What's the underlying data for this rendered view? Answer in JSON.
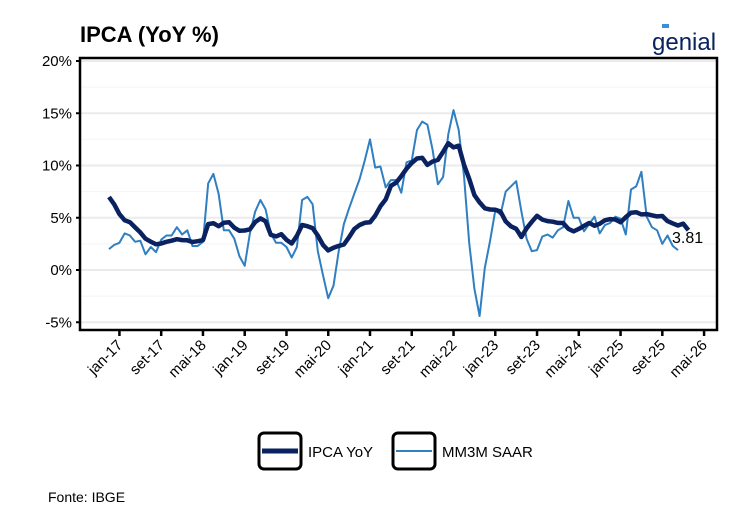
{
  "title": "IPCA (YoY %)",
  "logo_text": "genial",
  "source": "Fonte: IBGE",
  "colors": {
    "ipca": "#0a2260",
    "saar": "#2f7fc1",
    "grid": "#ebebeb"
  },
  "chart_data": {
    "type": "line",
    "ylim": [
      -5,
      20
    ],
    "yticks": [
      -5,
      0,
      5,
      10,
      15,
      20
    ],
    "ytick_labels": [
      "-5%",
      "0%",
      "5%",
      "10%",
      "15%",
      "20%"
    ],
    "xtick_dates": [
      "2017-01",
      "2017-09",
      "2018-05",
      "2019-01",
      "2019-09",
      "2020-05",
      "2021-01",
      "2021-09",
      "2022-05",
      "2023-01",
      "2023-09",
      "2024-05",
      "2025-01",
      "2025-09",
      "2026-05"
    ],
    "xtick_labels": [
      "jan-17",
      "set-17",
      "mai-18",
      "jan-19",
      "set-19",
      "mai-20",
      "jan-21",
      "set-21",
      "mai-22",
      "jan-23",
      "set-23",
      "mai-24",
      "jan-25",
      "set-25",
      "mai-26"
    ],
    "grid": true,
    "legend_position": "bottom",
    "x": [
      "2016-11",
      "2016-12",
      "2017-01",
      "2017-02",
      "2017-03",
      "2017-04",
      "2017-05",
      "2017-06",
      "2017-07",
      "2017-08",
      "2017-09",
      "2017-10",
      "2017-11",
      "2017-12",
      "2018-01",
      "2018-02",
      "2018-03",
      "2018-04",
      "2018-05",
      "2018-06",
      "2018-07",
      "2018-08",
      "2018-09",
      "2018-10",
      "2018-11",
      "2018-12",
      "2019-01",
      "2019-02",
      "2019-03",
      "2019-04",
      "2019-05",
      "2019-06",
      "2019-07",
      "2019-08",
      "2019-09",
      "2019-10",
      "2019-11",
      "2019-12",
      "2020-01",
      "2020-02",
      "2020-03",
      "2020-04",
      "2020-05",
      "2020-06",
      "2020-07",
      "2020-08",
      "2020-09",
      "2020-10",
      "2020-11",
      "2020-12",
      "2021-01",
      "2021-02",
      "2021-03",
      "2021-04",
      "2021-05",
      "2021-06",
      "2021-07",
      "2021-08",
      "2021-09",
      "2021-10",
      "2021-11",
      "2021-12",
      "2022-01",
      "2022-02",
      "2022-03",
      "2022-04",
      "2022-05",
      "2022-06",
      "2022-07",
      "2022-08",
      "2022-09",
      "2022-10",
      "2022-11",
      "2022-12",
      "2023-01",
      "2023-02",
      "2023-03",
      "2023-04",
      "2023-05",
      "2023-06",
      "2023-07",
      "2023-08",
      "2023-09",
      "2023-10",
      "2023-11",
      "2023-12",
      "2024-01",
      "2024-02",
      "2024-03",
      "2024-04",
      "2024-05",
      "2024-06",
      "2024-07",
      "2024-08",
      "2024-09",
      "2024-10",
      "2024-11",
      "2024-12",
      "2025-01",
      "2025-02",
      "2025-03",
      "2025-04",
      "2025-05",
      "2025-06",
      "2025-07",
      "2025-08",
      "2025-09",
      "2025-10",
      "2025-11",
      "2025-12",
      "2026-01",
      "2026-02"
    ],
    "series": [
      {
        "name": "IPCA YoY",
        "values": [
          6.99,
          6.29,
          5.35,
          4.76,
          4.57,
          4.08,
          3.6,
          3.0,
          2.71,
          2.46,
          2.54,
          2.7,
          2.8,
          2.95,
          2.86,
          2.84,
          2.68,
          2.76,
          2.86,
          4.39,
          4.48,
          4.19,
          4.53,
          4.56,
          4.05,
          3.75,
          3.78,
          3.89,
          4.58,
          4.94,
          4.66,
          3.37,
          3.22,
          3.43,
          2.89,
          2.54,
          3.27,
          4.31,
          4.19,
          4.01,
          3.3,
          2.4,
          1.88,
          2.13,
          2.31,
          2.44,
          3.14,
          3.92,
          4.31,
          4.52,
          4.56,
          5.2,
          6.1,
          6.76,
          8.06,
          8.35,
          8.99,
          9.68,
          10.25,
          10.67,
          10.74,
          10.06,
          10.38,
          10.54,
          11.3,
          12.13,
          11.73,
          11.89,
          10.07,
          8.73,
          7.17,
          6.47,
          5.9,
          5.79,
          5.77,
          5.6,
          4.65,
          4.18,
          3.94,
          3.16,
          3.99,
          4.61,
          5.19,
          4.82,
          4.68,
          4.62,
          4.51,
          4.5,
          3.93,
          3.69,
          3.93,
          4.23,
          4.5,
          4.24,
          4.42,
          4.76,
          4.87,
          4.83,
          4.56,
          5.06,
          5.48,
          5.53,
          5.32,
          5.35,
          5.23,
          5.13,
          5.17,
          4.68,
          4.46,
          4.26,
          4.44,
          3.81
        ]
      },
      {
        "name": "MM3M SAAR",
        "values": [
          2.0,
          2.4,
          2.6,
          3.5,
          3.3,
          2.7,
          2.8,
          1.5,
          2.2,
          1.7,
          2.9,
          3.3,
          3.3,
          4.1,
          3.4,
          3.8,
          2.3,
          2.3,
          2.7,
          8.3,
          9.2,
          7.3,
          3.8,
          3.8,
          3.0,
          1.3,
          0.4,
          3.5,
          5.6,
          6.7,
          5.8,
          3.5,
          2.6,
          2.6,
          2.2,
          1.2,
          2.2,
          6.7,
          7.0,
          6.3,
          1.8,
          -0.5,
          -2.7,
          -1.5,
          1.8,
          4.4,
          5.9,
          7.3,
          8.7,
          10.5,
          12.5,
          9.8,
          9.9,
          7.9,
          8.6,
          8.6,
          7.4,
          10.3,
          10.5,
          13.4,
          14.2,
          13.9,
          11.5,
          8.2,
          8.9,
          13.0,
          15.3,
          13.4,
          9.0,
          2.6,
          -1.8,
          -4.4,
          0.2,
          2.8,
          5.7,
          5.3,
          7.5,
          8.0,
          8.5,
          5.6,
          3.0,
          1.8,
          1.9,
          3.2,
          3.4,
          3.1,
          3.8,
          4.1,
          6.6,
          5.0,
          5.0,
          3.7,
          4.4,
          5.1,
          3.5,
          4.3,
          4.5,
          5.1,
          4.9,
          3.4,
          7.7,
          8.0,
          9.4,
          5.1,
          4.1,
          3.8,
          2.5,
          3.3,
          2.3,
          1.9,
          null,
          null
        ]
      }
    ],
    "end_label": "3.81"
  }
}
